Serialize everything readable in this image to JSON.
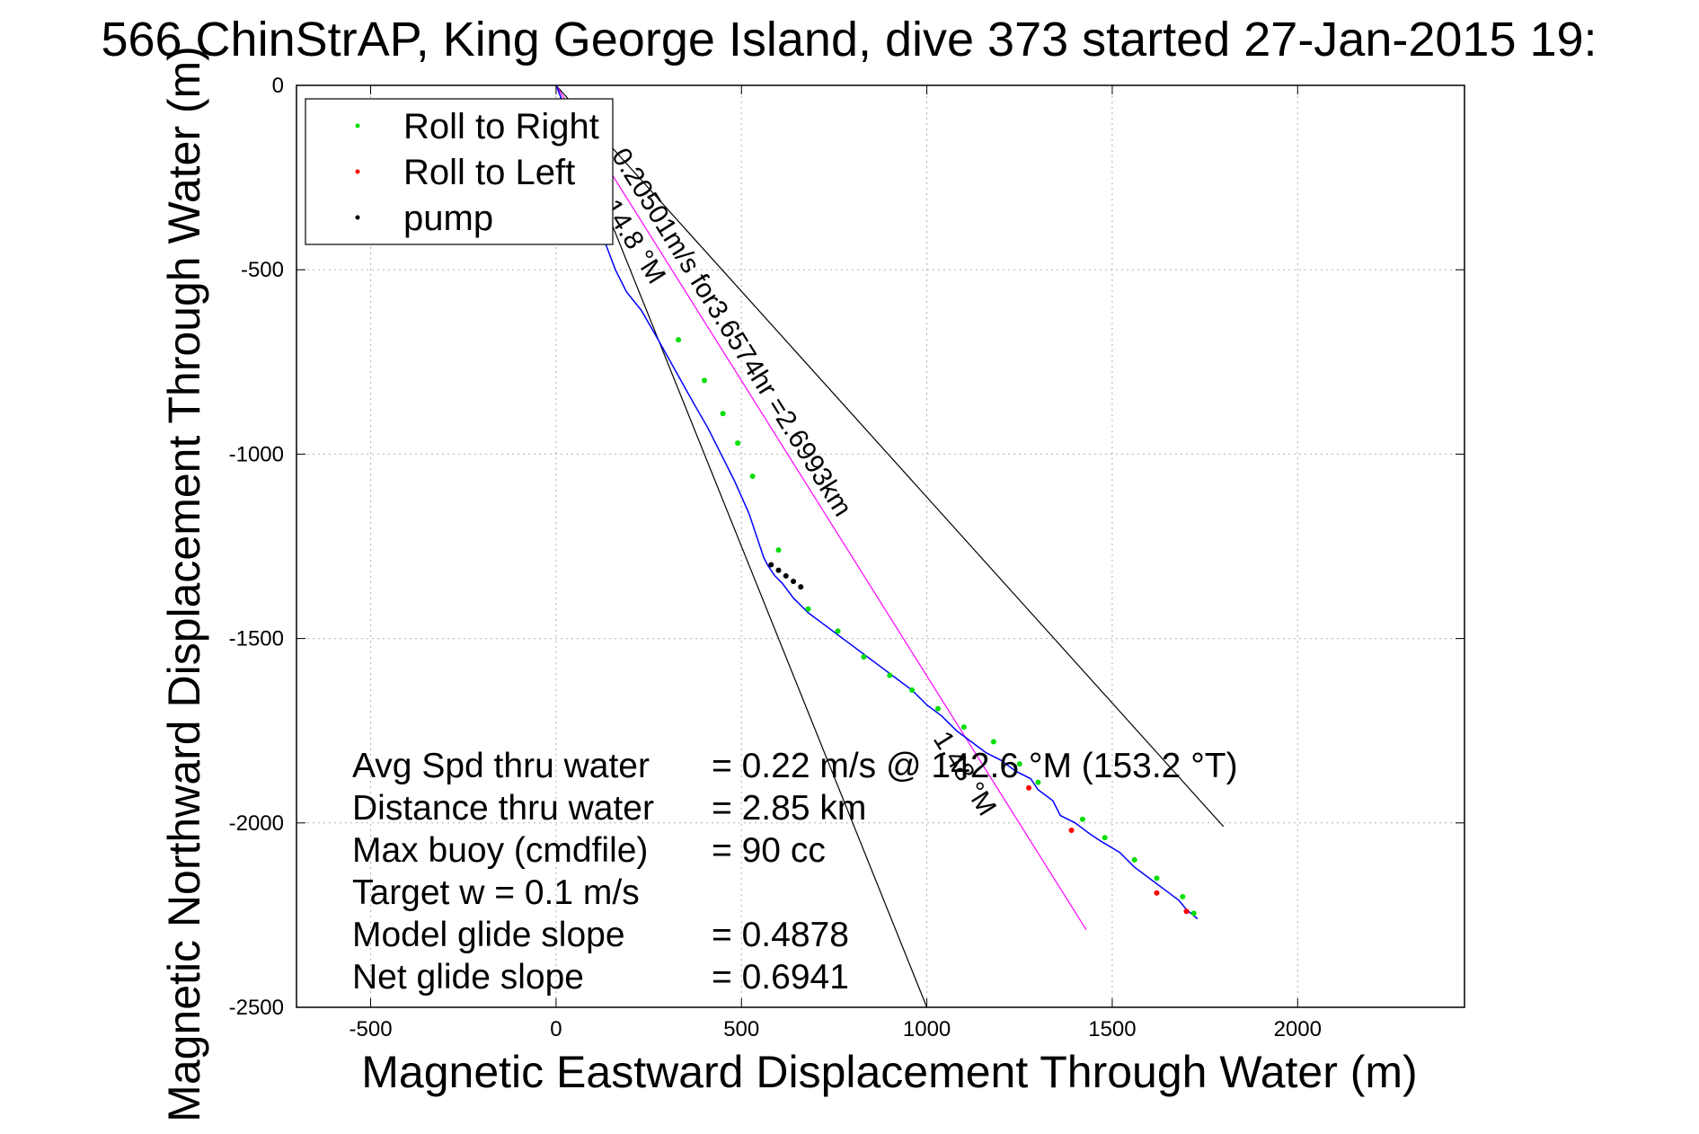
{
  "chart_data": {
    "type": "scatter",
    "title": "566 ChinStrAP, King George Island, dive 373 started 27-Jan-2015 19:",
    "xlabel": "Magnetic Eastward Displacement Through Water (m)",
    "ylabel": "Magnetic Northward Displacement Through Water (m)",
    "xlim": [
      -700,
      2450
    ],
    "ylim": [
      -2500,
      0
    ],
    "xticks": [
      -500,
      0,
      500,
      1000,
      1500,
      2000
    ],
    "yticks": [
      0,
      -500,
      -1000,
      -1500,
      -2000,
      -2500
    ],
    "xtick_labels": [
      "-500",
      "0",
      "500",
      "1000",
      "1500",
      "2000"
    ],
    "ytick_labels": [
      "0",
      "-500",
      "-1000",
      "-1500",
      "-2000",
      "-2500"
    ],
    "grid": true,
    "legend_position": "top-left",
    "legend": [
      {
        "label": "Roll to Right",
        "color": "#00dd00"
      },
      {
        "label": "Roll to Left",
        "color": "#ff0000"
      },
      {
        "label": "pump",
        "color": "#000000"
      }
    ],
    "series": [
      {
        "name": "track",
        "color": "#0000ff",
        "x": [
          0,
          12,
          20,
          35,
          60,
          90,
          130,
          160,
          190,
          230,
          270,
          320,
          370,
          410,
          440,
          480,
          520,
          560,
          570,
          590,
          610,
          640,
          680,
          720,
          760,
          800,
          840,
          880,
          920,
          960,
          1000,
          1040,
          1080,
          1120,
          1160,
          1200,
          1240,
          1280,
          1300,
          1340,
          1360,
          1400,
          1440,
          1470,
          1520,
          1560,
          1600,
          1640,
          1680,
          1700,
          1730
        ],
        "y": [
          0,
          -30,
          -80,
          -140,
          -220,
          -320,
          -420,
          -500,
          -560,
          -610,
          -680,
          -770,
          -860,
          -930,
          -990,
          -1070,
          -1160,
          -1280,
          -1300,
          -1330,
          -1350,
          -1390,
          -1430,
          -1460,
          -1490,
          -1520,
          -1550,
          -1580,
          -1610,
          -1640,
          -1680,
          -1710,
          -1750,
          -1780,
          -1810,
          -1830,
          -1860,
          -1880,
          -1910,
          -1940,
          -1980,
          -2000,
          -2030,
          -2050,
          -2080,
          -2120,
          -2150,
          -2180,
          -2210,
          -2235,
          -2260
        ]
      },
      {
        "name": "Roll to Right",
        "color": "#00dd00",
        "x": [
          330,
          400,
          450,
          490,
          530,
          600,
          680,
          760,
          830,
          900,
          960,
          1030,
          1100,
          1180,
          1250,
          1300,
          1420,
          1480,
          1560,
          1620,
          1690,
          1720
        ],
        "y": [
          -690,
          -800,
          -890,
          -970,
          -1060,
          -1260,
          -1420,
          -1480,
          -1550,
          -1600,
          -1640,
          -1690,
          -1740,
          -1780,
          -1840,
          -1890,
          -1990,
          -2040,
          -2100,
          -2150,
          -2200,
          -2245
        ]
      },
      {
        "name": "Roll to Left",
        "color": "#ff0000",
        "x": [
          1275,
          1390,
          1620,
          1700
        ],
        "y": [
          -1905,
          -2020,
          -2190,
          -2240
        ]
      },
      {
        "name": "pump",
        "color": "#000000",
        "x": [
          580,
          600,
          620,
          640,
          660
        ],
        "y": [
          -1300,
          -1315,
          -1330,
          -1345,
          -1360
        ]
      }
    ],
    "reference_lines": [
      {
        "color": "#000000",
        "x": [
          0,
          1800
        ],
        "y": [
          0,
          -2010
        ]
      },
      {
        "color": "#000000",
        "x": [
          0,
          1000
        ],
        "y": [
          0,
          -2500
        ]
      },
      {
        "color": "#ff00ff",
        "x": [
          0,
          1430
        ],
        "y": [
          0,
          -2290
        ]
      }
    ],
    "annotations": {
      "speed_line": "0.20501m/s for3.6574hr =2.6993km",
      "angle_label_1": "14.8 °M",
      "angle_label_2": "1.48 °M"
    },
    "stats": [
      {
        "label": "Avg Spd thru water",
        "value": "=  0.22 m/s @ 142.6 °M (153.2 °T)"
      },
      {
        "label": "Distance thru water",
        "value": "=  2.85 km"
      },
      {
        "label": "Max buoy (cmdfile)",
        "value": "= 90 cc"
      },
      {
        "label": "Target w    = 0.1 m/s",
        "value": ""
      },
      {
        "label": "Model glide slope",
        "value": "= 0.4878"
      },
      {
        "label": "Net glide slope",
        "value": "= 0.6941"
      }
    ]
  }
}
